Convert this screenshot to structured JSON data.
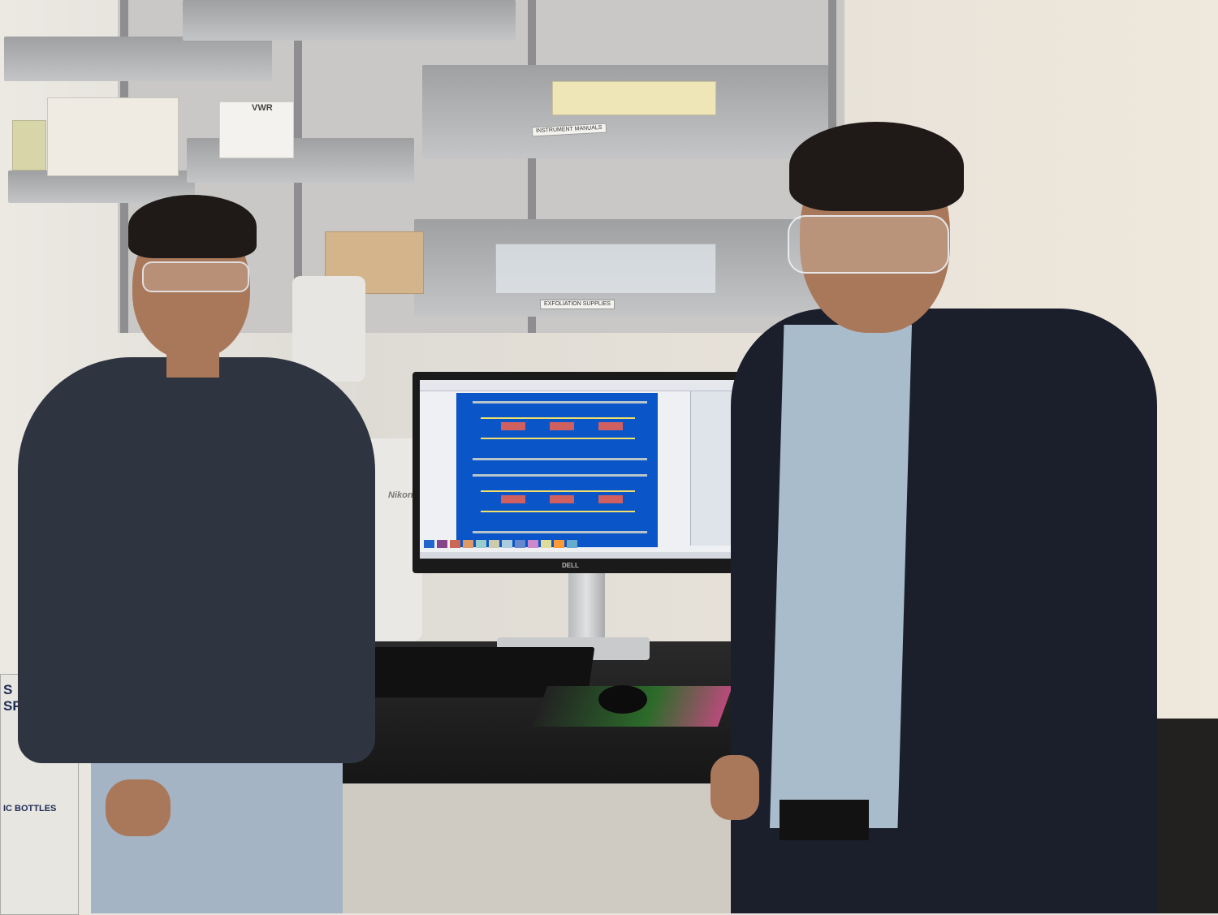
{
  "scene": {
    "description_type": "photo",
    "colors": {
      "wall": "#e9e4dc",
      "shelf_metal": "#c4c5c7",
      "layout_background": "#0a55c8",
      "desk": "#161616"
    }
  },
  "shelf_labels": {
    "label_1": "INSTRUMENT MANUALS",
    "label_2": "EXFOLIATION SUPPLIES"
  },
  "product_text": {
    "vwr": "VWR",
    "nikon": "Nikon",
    "dell": "DELL",
    "side_box_line1": "S",
    "side_box_line2": "SPOS",
    "side_box_line3": "IC BOTTLES"
  },
  "icons": [
    "monitor-icon",
    "keyboard-icon",
    "mouse-icon",
    "microscope-icon"
  ]
}
